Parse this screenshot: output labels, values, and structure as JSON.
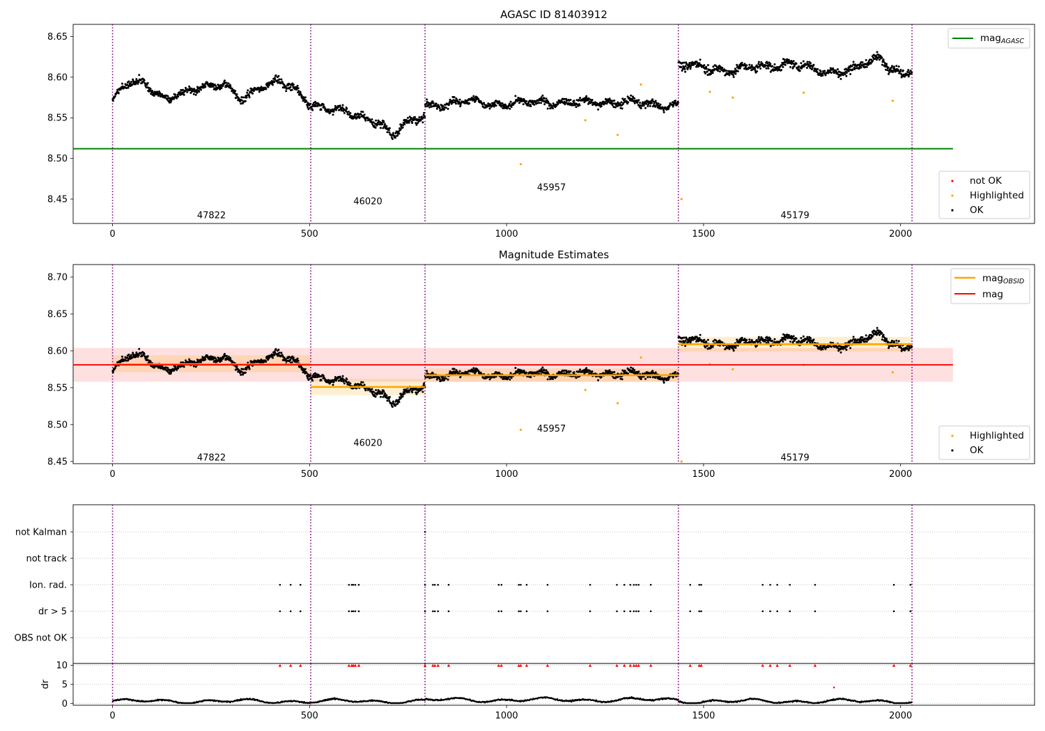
{
  "figure": {
    "title1": "AGASC ID 81403912",
    "title2": "Magnitude Estimates"
  },
  "chart_data": [
    {
      "type": "scatter",
      "title": "AGASC ID 81403912",
      "xlim": [
        -100,
        2340
      ],
      "ylim": [
        8.42,
        8.665
      ],
      "xticks": [
        0,
        500,
        1000,
        1500,
        2000
      ],
      "yticks": [
        8.45,
        8.5,
        8.55,
        8.6,
        8.65
      ],
      "obs_boundaries": [
        0,
        503,
        793,
        1436,
        2029
      ],
      "obs_labels": [
        {
          "label": "47822",
          "x": 251,
          "y": 8.43
        },
        {
          "label": "46020",
          "x": 648,
          "y": 8.447
        },
        {
          "label": "45957",
          "x": 1114,
          "y": 8.464
        },
        {
          "label": "45179",
          "x": 1732,
          "y": 8.43
        }
      ],
      "reference_lines": [
        {
          "name": "mag_AGASC",
          "y": 8.512,
          "x": [
            -100,
            2133
          ],
          "color": "#008000"
        }
      ],
      "series": [
        {
          "name": "not OK",
          "color": "#ff0000",
          "points": []
        },
        {
          "name": "Highlighted",
          "color": "#ffa500",
          "points": [
            [
              1036,
              8.493
            ],
            [
              1200,
              8.547
            ],
            [
              1282,
              8.529
            ],
            [
              1341,
              8.591
            ],
            [
              1444,
              8.45
            ],
            [
              1516,
              8.582
            ],
            [
              1574,
              8.575
            ],
            [
              1754,
              8.581
            ],
            [
              1980,
              8.571
            ]
          ]
        },
        {
          "name": "OK",
          "color": "#000000",
          "segments": [
            {
              "x": [
                0,
                503
              ],
              "profile": [
                [
                  0,
                  8.572
                ],
                [
                  40,
                  8.592
                ],
                [
                  80,
                  8.595
                ],
                [
                  130,
                  8.574
                ],
                [
                  180,
                  8.578
                ],
                [
                  230,
                  8.59
                ],
                [
                  280,
                  8.592
                ],
                [
                  330,
                  8.57
                ],
                [
                  380,
                  8.59
                ],
                [
                  420,
                  8.597
                ],
                [
                  460,
                  8.585
                ],
                [
                  503,
                  8.565
                ]
              ],
              "scatter": 0.0055
            },
            {
              "x": [
                503,
                793
              ],
              "profile": [
                [
                  503,
                  8.565
                ],
                [
                  560,
                  8.563
                ],
                [
                  620,
                  8.55
                ],
                [
                  680,
                  8.545
                ],
                [
                  710,
                  8.53
                ],
                [
                  750,
                  8.543
                ],
                [
                  793,
                  8.552
                ]
              ],
              "scatter": 0.006
            },
            {
              "x": [
                793,
                1436
              ],
              "profile": [
                [
                  793,
                  8.565
                ],
                [
                  900,
                  8.57
                ],
                [
                  1000,
                  8.567
                ],
                [
                  1100,
                  8.57
                ],
                [
                  1200,
                  8.568
                ],
                [
                  1300,
                  8.57
                ],
                [
                  1380,
                  8.565
                ],
                [
                  1436,
                  8.568
                ]
              ],
              "scatter": 0.0055
            },
            {
              "x": [
                1436,
                2029
              ],
              "profile": [
                [
                  1436,
                  8.615
                ],
                [
                  1550,
                  8.609
                ],
                [
                  1650,
                  8.612
                ],
                [
                  1720,
                  8.618
                ],
                [
                  1800,
                  8.606
                ],
                [
                  1880,
                  8.61
                ],
                [
                  1950,
                  8.623
                ],
                [
                  2000,
                  8.605
                ],
                [
                  2029,
                  8.61
                ]
              ],
              "scatter": 0.0065
            }
          ]
        }
      ],
      "legend": [
        {
          "position": "top-right",
          "entries": [
            "mag_AGASC"
          ]
        },
        {
          "position": "lower-right",
          "entries": [
            "not OK",
            "Highlighted",
            "OK"
          ]
        }
      ]
    },
    {
      "type": "scatter",
      "title": "Magnitude Estimates",
      "xlim": [
        -100,
        2340
      ],
      "ylim": [
        8.447,
        8.717
      ],
      "xticks": [
        0,
        500,
        1000,
        1500,
        2000
      ],
      "yticks": [
        8.45,
        8.5,
        8.55,
        8.6,
        8.65,
        8.7
      ],
      "obs_boundaries": [
        0,
        503,
        793,
        1436,
        2029
      ],
      "obs_labels": [
        {
          "label": "47822",
          "x": 251,
          "y": 8.455
        },
        {
          "label": "46020",
          "x": 648,
          "y": 8.475
        },
        {
          "label": "45957",
          "x": 1114,
          "y": 8.494
        },
        {
          "label": "45179",
          "x": 1732,
          "y": 8.455
        }
      ],
      "mag": {
        "name": "mag",
        "y": 8.581,
        "band": [
          8.558,
          8.604
        ],
        "x": [
          -100,
          2133
        ],
        "color": "#ff0000"
      },
      "mag_obsid": [
        {
          "x": [
            0,
            503
          ],
          "y": 8.582,
          "band": [
            8.571,
            8.594
          ]
        },
        {
          "x": [
            503,
            793
          ],
          "y": 8.551,
          "band": [
            8.54,
            8.562
          ]
        },
        {
          "x": [
            793,
            1436
          ],
          "y": 8.567,
          "band": [
            8.558,
            8.576
          ]
        },
        {
          "x": [
            1436,
            2029
          ],
          "y": 8.609,
          "band": [
            8.599,
            8.619
          ]
        }
      ],
      "series": [
        {
          "name": "Highlighted",
          "color": "#ffa500",
          "same_points_as_panel": 1
        },
        {
          "name": "OK",
          "color": "#000000",
          "same_points_as_panel": 1
        }
      ],
      "legend": [
        {
          "position": "top-right",
          "entries": [
            "mag_OBSID",
            "mag"
          ]
        },
        {
          "position": "lower-right",
          "entries": [
            "Highlighted",
            "OK"
          ]
        }
      ]
    },
    {
      "type": "scatter",
      "title": "",
      "xlim": [
        -100,
        2340
      ],
      "categories": [
        "not Kalman",
        "not track",
        "Ion. rad.",
        "dr > 5",
        "OBS not OK"
      ],
      "flags": {
        "not Kalman": [
          793
        ],
        "not track": [],
        "Ion. rad.": [
          425,
          452,
          477,
          600,
          607,
          611,
          616,
          625,
          793,
          813,
          818,
          826,
          853,
          980,
          987,
          1031,
          1036,
          1051,
          1104,
          1212,
          1280,
          1299,
          1314,
          1323,
          1329,
          1335,
          1366,
          1466,
          1489,
          1494,
          1650,
          1669,
          1687,
          1719,
          1783,
          1983,
          2025
        ],
        "dr > 5": [
          425,
          452,
          477,
          600,
          607,
          611,
          616,
          625,
          793,
          813,
          818,
          826,
          853,
          980,
          987,
          1031,
          1036,
          1051,
          1104,
          1212,
          1280,
          1299,
          1314,
          1323,
          1329,
          1335,
          1366,
          1466,
          1489,
          1494,
          1650,
          1669,
          1687,
          1719,
          1783,
          1983,
          2025
        ],
        "OBS not OK": []
      },
      "obs_boundaries": [
        0,
        503,
        793,
        1436,
        2029
      ]
    },
    {
      "type": "scatter",
      "title": "",
      "ylabel": "dr",
      "xlim": [
        -100,
        2340
      ],
      "ylim": [
        -0.5,
        10.5
      ],
      "xticks": [
        0,
        500,
        1000,
        1500,
        2000
      ],
      "yticks": [
        0,
        5,
        10
      ],
      "outliers": {
        "color": "#ff0000",
        "y": 10,
        "x": [
          425,
          452,
          477,
          600,
          607,
          611,
          616,
          625,
          793,
          813,
          818,
          826,
          853,
          980,
          987,
          1031,
          1036,
          1051,
          1104,
          1212,
          1280,
          1299,
          1314,
          1323,
          1329,
          1335,
          1366,
          1466,
          1489,
          1494,
          1650,
          1669,
          1687,
          1719,
          1783,
          1983,
          2025
        ],
        "extra": [
          [
            1831,
            4.2
          ]
        ]
      },
      "ok_points": {
        "color": "#000000",
        "x": [
          0,
          2029
        ],
        "y_range": [
          0.1,
          1.7
        ]
      },
      "obs_boundaries": [
        0,
        503,
        793,
        1436,
        2029
      ]
    }
  ],
  "legends": {
    "p1_top": {
      "mag_main": "mag",
      "mag_sub": "AGASC"
    },
    "p1_bottom": {
      "not_ok": "not OK",
      "highlighted": "Highlighted",
      "ok": "OK"
    },
    "p2_top": {
      "mag_obsid_main": "mag",
      "mag_obsid_sub": "OBSID",
      "mag": "mag"
    },
    "p2_bottom": {
      "highlighted": "Highlighted",
      "ok": "OK"
    }
  },
  "colors": {
    "agasc": "#008000",
    "mag": "#ff0000",
    "mag_obsid": "#ffa500",
    "ok": "#000000",
    "not_ok": "#ff0000",
    "highlighted": "#ffa500",
    "boundary": "#800080"
  }
}
